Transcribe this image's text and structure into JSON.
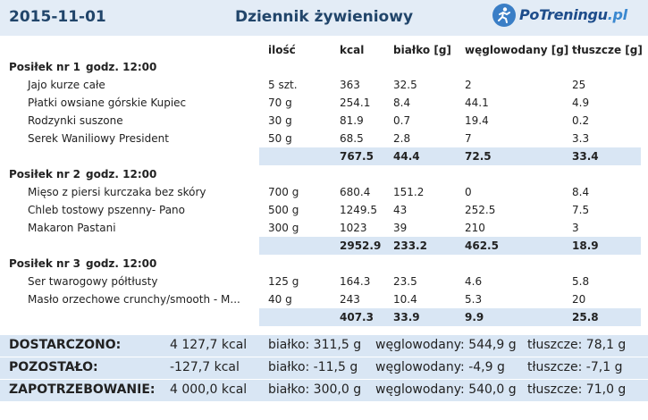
{
  "header": {
    "date": "2015-11-01",
    "title": "Dziennik żywieniowy",
    "logo_main": "PoTreningu",
    "logo_tld": ".pl"
  },
  "columns": {
    "qty": "ilość",
    "kcal": "kcal",
    "protein": "białko [g]",
    "carbs": "węglowodany [g]",
    "fat": "tłuszcze [g]"
  },
  "meals": [
    {
      "title": "Posiłek nr 1",
      "time": "godz. 12:00",
      "items": [
        {
          "name": "Jajo kurze całe",
          "qty": "5 szt.",
          "kcal": "363",
          "protein": "32.5",
          "carbs": "2",
          "fat": "25"
        },
        {
          "name": "Płatki owsiane górskie Kupiec",
          "qty": "70 g",
          "kcal": "254.1",
          "protein": "8.4",
          "carbs": "44.1",
          "fat": "4.9"
        },
        {
          "name": "Rodzynki suszone",
          "qty": "30 g",
          "kcal": "81.9",
          "protein": "0.7",
          "carbs": "19.4",
          "fat": "0.2"
        },
        {
          "name": "Serek Waniliowy President",
          "qty": "50 g",
          "kcal": "68.5",
          "protein": "2.8",
          "carbs": "7",
          "fat": "3.3"
        }
      ],
      "sum": {
        "kcal": "767.5",
        "protein": "44.4",
        "carbs": "72.5",
        "fat": "33.4"
      }
    },
    {
      "title": "Posiłek nr 2",
      "time": "godz. 12:00",
      "items": [
        {
          "name": "Mięso z piersi kurczaka bez skóry",
          "qty": "700 g",
          "kcal": "680.4",
          "protein": "151.2",
          "carbs": "0",
          "fat": "8.4"
        },
        {
          "name": "Chleb tostowy pszenny- Pano",
          "qty": "500 g",
          "kcal": "1249.5",
          "protein": "43",
          "carbs": "252.5",
          "fat": "7.5"
        },
        {
          "name": "Makaron Pastani",
          "qty": "300 g",
          "kcal": "1023",
          "protein": "39",
          "carbs": "210",
          "fat": "3"
        }
      ],
      "sum": {
        "kcal": "2952.9",
        "protein": "233.2",
        "carbs": "462.5",
        "fat": "18.9"
      }
    },
    {
      "title": "Posiłek nr 3",
      "time": "godz. 12:00",
      "items": [
        {
          "name": "Ser twarogowy półtłusty",
          "qty": "125 g",
          "kcal": "164.3",
          "protein": "23.5",
          "carbs": "4.6",
          "fat": "5.8"
        },
        {
          "name": "Masło orzechowe crunchy/smooth - M...",
          "qty": "40 g",
          "kcal": "243",
          "protein": "10.4",
          "carbs": "5.3",
          "fat": "20"
        }
      ],
      "sum": {
        "kcal": "407.3",
        "protein": "33.9",
        "carbs": "9.9",
        "fat": "25.8"
      }
    }
  ],
  "totals": [
    {
      "label": "DOSTARCZONO:",
      "kcal": "4 127,7 kcal",
      "protein": "białko: 311,5 g",
      "carbs": "węglowodany: 544,9 g",
      "fat": "tłuszcze: 78,1 g"
    },
    {
      "label": "POZOSTAŁO:",
      "kcal": "-127,7 kcal",
      "protein": "białko: -11,5 g",
      "carbs": "węglowodany: -4,9 g",
      "fat": "tłuszcze: -7,1 g"
    },
    {
      "label": "ZAPOTRZEBOWANIE:",
      "kcal": "4 000,0 kcal",
      "protein": "białko: 300,0 g",
      "carbs": "węglowodany: 540,0 g",
      "fat": "tłuszcze: 71,0 g"
    }
  ]
}
